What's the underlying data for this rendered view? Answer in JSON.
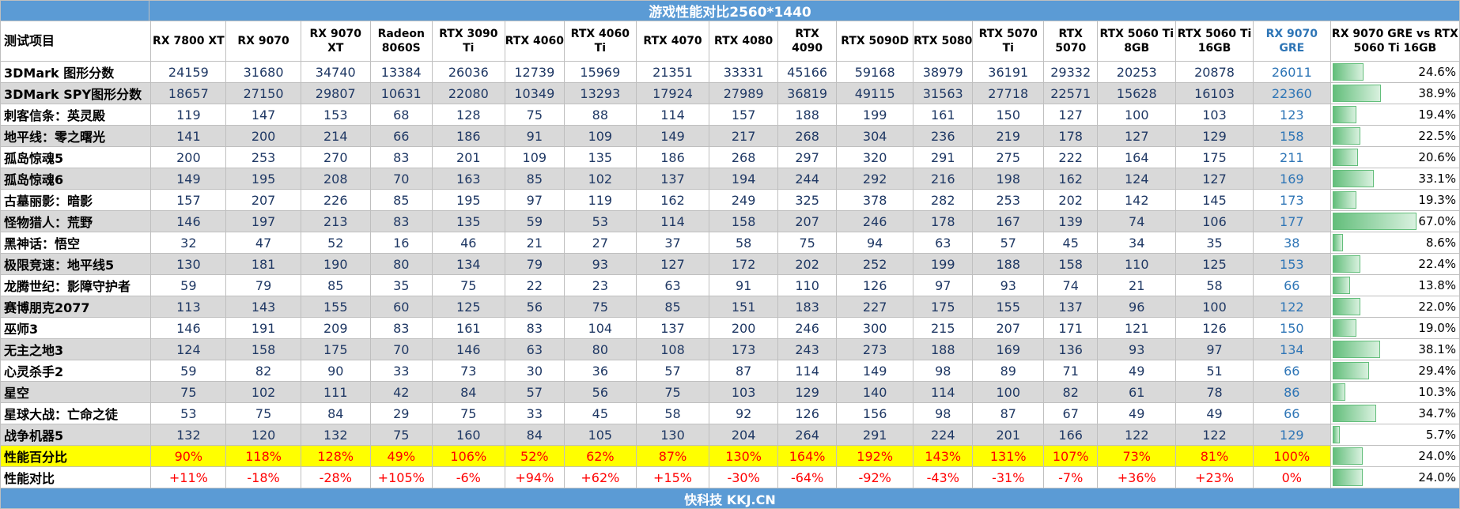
{
  "title": "游戏性能对比2560*1440",
  "footer": "快科技 KKJ.CN",
  "colors": {
    "header_bar": "#5b9bd5",
    "alt_row": "#d9d9d9",
    "highlight_gpu": "#2e75b6",
    "perf_row": "#ffff00",
    "negative_text": "#ff0000",
    "databar": "#63be7b"
  },
  "chart_data": {
    "type": "table",
    "title": "游戏性能对比2560*1440",
    "row_header_label": "测试项目",
    "columns": [
      "RX 7800 XT",
      "RX 9070",
      "RX 9070 XT",
      "Radeon 8060S",
      "RTX 3090 Ti",
      "RTX 4060",
      "RTX 4060 Ti",
      "RTX 4070",
      "RTX 4080",
      "RTX 4090",
      "RTX 5090D",
      "RTX 5080",
      "RTX 5070 Ti",
      "RTX 5070",
      "RTX 5060 Ti 8GB",
      "RTX 5060 Ti 16GB",
      "RX 9070 GRE"
    ],
    "highlight_column": "RX 9070 GRE",
    "comparison_column": "RX 9070 GRE vs RTX 5060 Ti 16GB",
    "rows": [
      {
        "label": "3DMark 图形分数",
        "values": [
          "24159",
          "31680",
          "34740",
          "13384",
          "26036",
          "12739",
          "15969",
          "21351",
          "33331",
          "45166",
          "59168",
          "38979",
          "36191",
          "29332",
          "20253",
          "20878",
          "26011"
        ],
        "comparison": "24.6%",
        "comparison_value": 24.6
      },
      {
        "label": "3DMark SPY图形分数",
        "values": [
          "18657",
          "27150",
          "29807",
          "10631",
          "22080",
          "10349",
          "13293",
          "17924",
          "27989",
          "36819",
          "49115",
          "31563",
          "27718",
          "22571",
          "15628",
          "16103",
          "22360"
        ],
        "comparison": "38.9%",
        "comparison_value": 38.9
      },
      {
        "label": "刺客信条：英灵殿",
        "values": [
          "119",
          "147",
          "153",
          "68",
          "128",
          "75",
          "88",
          "114",
          "157",
          "188",
          "199",
          "161",
          "150",
          "127",
          "100",
          "103",
          "123"
        ],
        "comparison": "19.4%",
        "comparison_value": 19.4
      },
      {
        "label": "地平线：零之曙光",
        "values": [
          "141",
          "200",
          "214",
          "66",
          "186",
          "91",
          "109",
          "149",
          "217",
          "268",
          "304",
          "236",
          "219",
          "178",
          "127",
          "129",
          "158"
        ],
        "comparison": "22.5%",
        "comparison_value": 22.5
      },
      {
        "label": "孤岛惊魂5",
        "values": [
          "200",
          "253",
          "270",
          "83",
          "201",
          "109",
          "135",
          "186",
          "268",
          "297",
          "320",
          "291",
          "275",
          "222",
          "164",
          "175",
          "211"
        ],
        "comparison": "20.6%",
        "comparison_value": 20.6
      },
      {
        "label": "孤岛惊魂6",
        "values": [
          "149",
          "195",
          "208",
          "70",
          "163",
          "85",
          "102",
          "137",
          "194",
          "244",
          "292",
          "216",
          "198",
          "162",
          "124",
          "127",
          "169"
        ],
        "comparison": "33.1%",
        "comparison_value": 33.1
      },
      {
        "label": "古墓丽影：暗影",
        "values": [
          "157",
          "207",
          "226",
          "85",
          "195",
          "97",
          "119",
          "162",
          "249",
          "325",
          "378",
          "282",
          "253",
          "202",
          "142",
          "145",
          "173"
        ],
        "comparison": "19.3%",
        "comparison_value": 19.3
      },
      {
        "label": "怪物猎人：荒野",
        "values": [
          "146",
          "197",
          "213",
          "83",
          "135",
          "59",
          "53",
          "114",
          "158",
          "207",
          "246",
          "178",
          "167",
          "139",
          "74",
          "106",
          "177"
        ],
        "comparison": "67.0%",
        "comparison_value": 67.0
      },
      {
        "label": "黑神话：悟空",
        "values": [
          "32",
          "47",
          "52",
          "16",
          "46",
          "21",
          "27",
          "37",
          "58",
          "75",
          "94",
          "63",
          "57",
          "45",
          "34",
          "35",
          "38"
        ],
        "comparison": "8.6%",
        "comparison_value": 8.6
      },
      {
        "label": "极限竞速：地平线5",
        "values": [
          "130",
          "181",
          "190",
          "80",
          "134",
          "79",
          "93",
          "127",
          "172",
          "202",
          "252",
          "199",
          "188",
          "158",
          "110",
          "125",
          "153"
        ],
        "comparison": "22.4%",
        "comparison_value": 22.4
      },
      {
        "label": "龙腾世纪：影障守护者",
        "values": [
          "59",
          "79",
          "85",
          "35",
          "75",
          "22",
          "23",
          "63",
          "91",
          "110",
          "126",
          "97",
          "93",
          "74",
          "21",
          "58",
          "66"
        ],
        "comparison": "13.8%",
        "comparison_value": 13.8
      },
      {
        "label": "赛博朋克2077",
        "values": [
          "113",
          "143",
          "155",
          "60",
          "125",
          "56",
          "75",
          "85",
          "151",
          "183",
          "227",
          "175",
          "155",
          "137",
          "96",
          "100",
          "122"
        ],
        "comparison": "22.0%",
        "comparison_value": 22.0
      },
      {
        "label": "巫师3",
        "values": [
          "146",
          "191",
          "209",
          "83",
          "161",
          "83",
          "104",
          "137",
          "200",
          "246",
          "300",
          "215",
          "207",
          "171",
          "121",
          "126",
          "150"
        ],
        "comparison": "19.0%",
        "comparison_value": 19.0
      },
      {
        "label": "无主之地3",
        "values": [
          "124",
          "158",
          "175",
          "70",
          "146",
          "63",
          "80",
          "108",
          "173",
          "243",
          "273",
          "188",
          "169",
          "136",
          "93",
          "97",
          "134"
        ],
        "comparison": "38.1%",
        "comparison_value": 38.1
      },
      {
        "label": "心灵杀手2",
        "values": [
          "59",
          "82",
          "90",
          "33",
          "73",
          "30",
          "36",
          "57",
          "87",
          "114",
          "149",
          "98",
          "89",
          "71",
          "49",
          "51",
          "66"
        ],
        "comparison": "29.4%",
        "comparison_value": 29.4
      },
      {
        "label": "星空",
        "values": [
          "75",
          "102",
          "111",
          "42",
          "84",
          "57",
          "56",
          "75",
          "103",
          "129",
          "140",
          "114",
          "100",
          "82",
          "61",
          "78",
          "86"
        ],
        "comparison": "10.3%",
        "comparison_value": 10.3
      },
      {
        "label": "星球大战：亡命之徒",
        "values": [
          "53",
          "75",
          "84",
          "29",
          "75",
          "33",
          "45",
          "58",
          "92",
          "126",
          "156",
          "98",
          "87",
          "67",
          "49",
          "49",
          "66"
        ],
        "comparison": "34.7%",
        "comparison_value": 34.7
      },
      {
        "label": "战争机器5",
        "values": [
          "132",
          "120",
          "132",
          "75",
          "160",
          "84",
          "105",
          "130",
          "204",
          "264",
          "291",
          "224",
          "201",
          "166",
          "122",
          "122",
          "129"
        ],
        "comparison": "5.7%",
        "comparison_value": 5.7
      }
    ],
    "perf_row": {
      "label": "性能百分比",
      "values": [
        "90%",
        "118%",
        "128%",
        "49%",
        "106%",
        "52%",
        "62%",
        "87%",
        "130%",
        "164%",
        "192%",
        "143%",
        "131%",
        "107%",
        "73%",
        "81%",
        "100%"
      ],
      "comparison": "24.0%",
      "comparison_value": 24.0
    },
    "rel_row": {
      "label": "性能对比",
      "values": [
        "+11%",
        "-18%",
        "-28%",
        "+105%",
        "-6%",
        "+94%",
        "+62%",
        "+15%",
        "-30%",
        "-64%",
        "-92%",
        "-43%",
        "-31%",
        "-7%",
        "+36%",
        "+23%",
        "0%"
      ],
      "comparison": "24.0%",
      "comparison_value": 24.0
    },
    "databar_max": 100
  }
}
